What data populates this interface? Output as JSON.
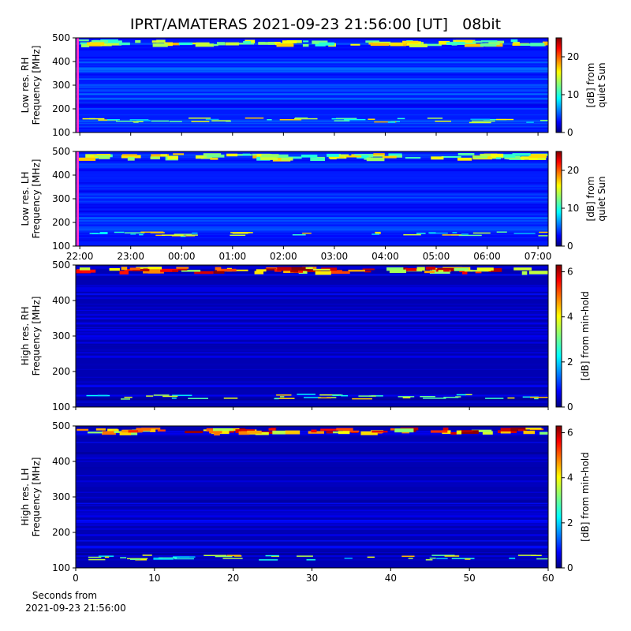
{
  "title": "IPRT/AMATERAS 2021-09-23 21:56:00 [UT]   08bit",
  "chart_data": [
    {
      "type": "spectrogram",
      "ylabel": [
        "Low res. RH",
        "Frequency [MHz]"
      ],
      "ylim": [
        100,
        500
      ],
      "yticks": [
        100,
        200,
        300,
        400,
        500
      ],
      "xlim": [
        21.92,
        31.2
      ],
      "show_xtick_labels": false,
      "xticks": [
        {
          "value": 22,
          "label": "22:00"
        },
        {
          "value": 23,
          "label": "23:00"
        },
        {
          "value": 24,
          "label": "00:00"
        },
        {
          "value": 25,
          "label": "01:00"
        },
        {
          "value": 26,
          "label": "02:00"
        },
        {
          "value": 27,
          "label": "03:00"
        },
        {
          "value": 28,
          "label": "04:00"
        },
        {
          "value": 29,
          "label": "05:00"
        },
        {
          "value": 30,
          "label": "06:00"
        },
        {
          "value": 31,
          "label": "07:00"
        }
      ],
      "clim": [
        0,
        25
      ],
      "cticks": [
        0,
        10,
        20
      ],
      "clabel": [
        "[dB] from",
        "quiet Sun"
      ]
    },
    {
      "type": "spectrogram",
      "ylabel": [
        "Low res. LH",
        "Frequency [MHz]"
      ],
      "ylim": [
        100,
        500
      ],
      "yticks": [
        100,
        200,
        300,
        400,
        500
      ],
      "xlim": [
        21.92,
        31.2
      ],
      "show_xtick_labels": true,
      "xticks": [
        {
          "value": 22,
          "label": "22:00"
        },
        {
          "value": 23,
          "label": "23:00"
        },
        {
          "value": 24,
          "label": "00:00"
        },
        {
          "value": 25,
          "label": "01:00"
        },
        {
          "value": 26,
          "label": "02:00"
        },
        {
          "value": 27,
          "label": "03:00"
        },
        {
          "value": 28,
          "label": "04:00"
        },
        {
          "value": 29,
          "label": "05:00"
        },
        {
          "value": 30,
          "label": "06:00"
        },
        {
          "value": 31,
          "label": "07:00"
        }
      ],
      "clim": [
        0,
        25
      ],
      "cticks": [
        0,
        10,
        20
      ],
      "clabel": [
        "[dB] from",
        "quiet Sun"
      ]
    },
    {
      "type": "spectrogram",
      "ylabel": [
        "High res. RH",
        "Frequency [MHz]"
      ],
      "ylim": [
        100,
        500
      ],
      "yticks": [
        100,
        200,
        300,
        400,
        500
      ],
      "xlim": [
        0,
        60
      ],
      "show_xtick_labels": false,
      "xticks": [
        0,
        10,
        20,
        30,
        40,
        50,
        60
      ],
      "clim": [
        0,
        6.3
      ],
      "cticks": [
        0,
        2,
        4,
        6
      ],
      "clabel": [
        "[dB] from min-hold"
      ]
    },
    {
      "type": "spectrogram",
      "ylabel": [
        "High res. LH",
        "Frequency [MHz]"
      ],
      "ylim": [
        100,
        500
      ],
      "yticks": [
        100,
        200,
        300,
        400,
        500
      ],
      "xlim": [
        0,
        60
      ],
      "show_xtick_labels": true,
      "xticks": [
        0,
        10,
        20,
        30,
        40,
        50,
        60
      ],
      "clim": [
        0,
        6.3
      ],
      "cticks": [
        0,
        2,
        4,
        6
      ],
      "clabel": [
        "[dB] from min-hold"
      ],
      "xlabel": [
        "Seconds from",
        "2021-09-23 21:56:00"
      ]
    }
  ]
}
